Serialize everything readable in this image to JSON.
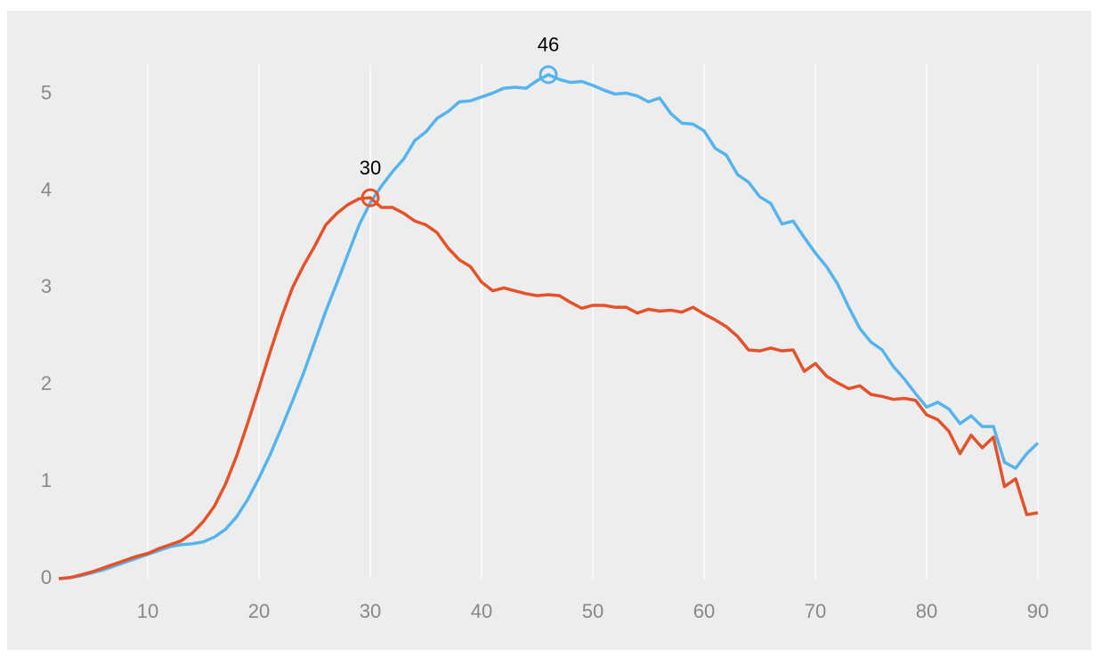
{
  "chart_data": {
    "type": "line",
    "x": [
      2,
      3,
      4,
      5,
      6,
      7,
      8,
      9,
      10,
      11,
      12,
      13,
      14,
      15,
      16,
      17,
      18,
      19,
      20,
      21,
      22,
      23,
      24,
      25,
      26,
      27,
      28,
      29,
      30,
      31,
      32,
      33,
      34,
      35,
      36,
      37,
      38,
      39,
      40,
      41,
      42,
      43,
      44,
      45,
      46,
      47,
      48,
      49,
      50,
      51,
      52,
      53,
      54,
      55,
      56,
      57,
      58,
      59,
      60,
      61,
      62,
      63,
      64,
      65,
      66,
      67,
      68,
      69,
      70,
      71,
      72,
      73,
      74,
      75,
      76,
      77,
      78,
      79,
      80,
      81,
      82,
      83,
      84,
      85,
      86,
      87,
      88,
      89,
      90
    ],
    "series": [
      {
        "color": "#56b4ec",
        "values": [
          0,
          0.01,
          0.03,
          0.06,
          0.09,
          0.13,
          0.17,
          0.21,
          0.25,
          0.29,
          0.33,
          0.35,
          0.36,
          0.38,
          0.43,
          0.51,
          0.64,
          0.82,
          1.04,
          1.28,
          1.55,
          1.83,
          2.12,
          2.44,
          2.76,
          3.05,
          3.35,
          3.65,
          3.88,
          4.05,
          4.2,
          4.33,
          4.52,
          4.61,
          4.75,
          4.82,
          4.92,
          4.93,
          4.97,
          5.01,
          5.06,
          5.07,
          5.06,
          5.14,
          5.2,
          5.15,
          5.12,
          5.13,
          5.09,
          5.04,
          5.0,
          5.01,
          4.98,
          4.92,
          4.96,
          4.8,
          4.7,
          4.69,
          4.62,
          4.44,
          4.37,
          4.17,
          4.09,
          3.94,
          3.87,
          3.66,
          3.69,
          3.52,
          3.36,
          3.22,
          3.04,
          2.8,
          2.58,
          2.44,
          2.36,
          2.19,
          2.06,
          1.91,
          1.77,
          1.82,
          1.75,
          1.6,
          1.68,
          1.57,
          1.57,
          1.2,
          1.14,
          1.29,
          1.4
        ]
      },
      {
        "color": "#e5522a",
        "values": [
          0,
          0.01,
          0.04,
          0.07,
          0.11,
          0.15,
          0.19,
          0.23,
          0.26,
          0.31,
          0.35,
          0.39,
          0.47,
          0.59,
          0.75,
          0.98,
          1.27,
          1.61,
          1.97,
          2.34,
          2.69,
          3.0,
          3.23,
          3.43,
          3.65,
          3.77,
          3.86,
          3.92,
          3.93,
          3.83,
          3.83,
          3.77,
          3.69,
          3.65,
          3.57,
          3.41,
          3.29,
          3.22,
          3.06,
          2.97,
          3.0,
          2.97,
          2.94,
          2.92,
          2.93,
          2.92,
          2.85,
          2.79,
          2.82,
          2.82,
          2.8,
          2.8,
          2.74,
          2.78,
          2.76,
          2.77,
          2.75,
          2.8,
          2.73,
          2.67,
          2.6,
          2.5,
          2.36,
          2.35,
          2.38,
          2.35,
          2.36,
          2.14,
          2.22,
          2.09,
          2.02,
          1.96,
          1.99,
          1.9,
          1.88,
          1.85,
          1.86,
          1.84,
          1.69,
          1.64,
          1.52,
          1.29,
          1.48,
          1.35,
          1.46,
          0.95,
          1.03,
          0.66,
          0.68
        ]
      }
    ],
    "annotations": [
      {
        "series": 0,
        "x": 46
      },
      {
        "series": 1,
        "x": 30
      }
    ],
    "xlim": [
      2,
      90
    ],
    "xticks": [
      10,
      20,
      30,
      40,
      50,
      60,
      70,
      80,
      90
    ],
    "ylim": [
      0,
      5.3
    ],
    "yticks": [
      0,
      1,
      2,
      3,
      4,
      5
    ],
    "grid": "x"
  }
}
